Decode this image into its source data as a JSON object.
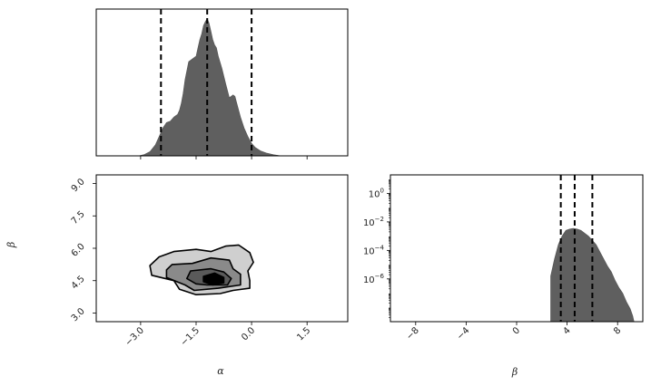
{
  "chart_data": {
    "type": "corner-plot",
    "parameters": [
      "α",
      "β"
    ],
    "colors": {
      "fill": "#5f5f5f",
      "edge": "#555555",
      "quantile_line": "#000000",
      "axes": "#000000",
      "contour_levels": [
        "#cfcfcf",
        "#8a8a8a",
        "#5a5a5a",
        "#000000"
      ]
    },
    "panels": [
      {
        "id": "hist-alpha",
        "type": "histogram",
        "xlim": [
          -4.2,
          2.6
        ],
        "ylim": [
          0,
          1.06
        ],
        "x_ticks": [
          -3.0,
          -1.5,
          0.0,
          1.5
        ],
        "x_tick_labels_shown": false,
        "y_tick_labels_shown": false,
        "quantile_lines": [
          -2.45,
          -1.2,
          0.0
        ],
        "density": [
          [
            -3.05,
            0
          ],
          [
            -2.9,
            0.01
          ],
          [
            -2.75,
            0.03
          ],
          [
            -2.6,
            0.08
          ],
          [
            -2.5,
            0.14
          ],
          [
            -2.4,
            0.2
          ],
          [
            -2.3,
            0.24
          ],
          [
            -2.2,
            0.25
          ],
          [
            -2.1,
            0.28
          ],
          [
            -2.0,
            0.3
          ],
          [
            -1.95,
            0.33
          ],
          [
            -1.9,
            0.38
          ],
          [
            -1.85,
            0.45
          ],
          [
            -1.8,
            0.55
          ],
          [
            -1.7,
            0.68
          ],
          [
            -1.6,
            0.7
          ],
          [
            -1.5,
            0.72
          ],
          [
            -1.45,
            0.78
          ],
          [
            -1.4,
            0.84
          ],
          [
            -1.35,
            0.88
          ],
          [
            -1.3,
            0.94
          ],
          [
            -1.25,
            0.97
          ],
          [
            -1.2,
            0.99
          ],
          [
            -1.15,
            0.96
          ],
          [
            -1.1,
            0.9
          ],
          [
            -1.05,
            0.84
          ],
          [
            -1.0,
            0.8
          ],
          [
            -0.95,
            0.78
          ],
          [
            -0.9,
            0.72
          ],
          [
            -0.8,
            0.63
          ],
          [
            -0.7,
            0.52
          ],
          [
            -0.6,
            0.42
          ],
          [
            -0.5,
            0.44
          ],
          [
            -0.45,
            0.43
          ],
          [
            -0.4,
            0.38
          ],
          [
            -0.3,
            0.28
          ],
          [
            -0.2,
            0.2
          ],
          [
            -0.1,
            0.14
          ],
          [
            0.0,
            0.09
          ],
          [
            0.1,
            0.06
          ],
          [
            0.25,
            0.035
          ],
          [
            0.4,
            0.02
          ],
          [
            0.6,
            0.008
          ],
          [
            0.8,
            0
          ]
        ]
      },
      {
        "id": "joint-alpha-beta",
        "type": "contour",
        "xlim": [
          -4.2,
          2.6
        ],
        "ylim": [
          2.6,
          9.4
        ],
        "x_ticks": [
          -3.0,
          -1.5,
          0.0,
          1.5
        ],
        "x_tick_labels": [
          "−3.0",
          "−1.5",
          "0.0",
          "1.5"
        ],
        "y_ticks": [
          3.0,
          4.5,
          6.0,
          7.5,
          9.0
        ],
        "y_tick_labels": [
          "3.0",
          "4.5",
          "6.0",
          "7.5",
          "9.0"
        ],
        "xlabel": "α",
        "ylabel": "β",
        "contours": [
          {
            "level": 1,
            "points": [
              [
                -2.5,
                5.6
              ],
              [
                -2.1,
                5.85
              ],
              [
                -1.5,
                5.95
              ],
              [
                -1.1,
                5.85
              ],
              [
                -0.7,
                6.1
              ],
              [
                -0.35,
                6.15
              ],
              [
                -0.05,
                5.8
              ],
              [
                0.05,
                5.35
              ],
              [
                -0.1,
                4.95
              ],
              [
                -0.05,
                4.5
              ],
              [
                -0.05,
                4.15
              ],
              [
                -0.5,
                4.05
              ],
              [
                -0.85,
                3.9
              ],
              [
                -1.5,
                3.85
              ],
              [
                -1.95,
                4.1
              ],
              [
                -2.1,
                4.5
              ],
              [
                -2.7,
                4.75
              ],
              [
                -2.75,
                5.2
              ]
            ]
          },
          {
            "level": 2,
            "points": [
              [
                -2.15,
                5.25
              ],
              [
                -1.6,
                5.3
              ],
              [
                -1.1,
                5.55
              ],
              [
                -0.6,
                5.45
              ],
              [
                -0.5,
                5.05
              ],
              [
                -0.3,
                4.8
              ],
              [
                -0.3,
                4.3
              ],
              [
                -0.9,
                4.15
              ],
              [
                -1.55,
                4.05
              ],
              [
                -1.8,
                4.3
              ],
              [
                -2.3,
                4.65
              ],
              [
                -2.3,
                5.0
              ]
            ]
          },
          {
            "level": 3,
            "points": [
              [
                -1.65,
                4.95
              ],
              [
                -1.1,
                5.05
              ],
              [
                -0.75,
                4.9
              ],
              [
                -0.55,
                4.6
              ],
              [
                -0.65,
                4.3
              ],
              [
                -1.2,
                4.3
              ],
              [
                -1.5,
                4.35
              ],
              [
                -1.75,
                4.6
              ]
            ]
          },
          {
            "level": 4,
            "points": [
              [
                -1.3,
                4.7
              ],
              [
                -1.0,
                4.85
              ],
              [
                -0.75,
                4.65
              ],
              [
                -0.75,
                4.4
              ],
              [
                -1.05,
                4.3
              ],
              [
                -1.3,
                4.45
              ]
            ]
          }
        ]
      },
      {
        "id": "hist-beta",
        "type": "histogram",
        "yscale": "log",
        "xlim": [
          -10,
          10
        ],
        "ylim_log10": [
          -9,
          1.3
        ],
        "x_ticks": [
          -8,
          -4,
          0,
          4,
          8
        ],
        "x_tick_labels": [
          "−8",
          "−4",
          "0",
          "4",
          "8"
        ],
        "y_ticks": [
          -6,
          -4,
          -2,
          0
        ],
        "y_tick_labels": [
          {
            "base": "10",
            "exp": "−6"
          },
          {
            "base": "10",
            "exp": "−4"
          },
          {
            "base": "10",
            "exp": "−2"
          },
          {
            "base": "10",
            "exp": "0"
          }
        ],
        "xlabel": "β",
        "quantile_lines": [
          3.5,
          4.6,
          6.0
        ],
        "log_density": [
          [
            2.7,
            -5.8
          ],
          [
            3.0,
            -4.6
          ],
          [
            3.3,
            -3.6
          ],
          [
            3.6,
            -3.0
          ],
          [
            3.9,
            -2.6
          ],
          [
            4.2,
            -2.5
          ],
          [
            4.5,
            -2.45
          ],
          [
            4.8,
            -2.5
          ],
          [
            5.1,
            -2.6
          ],
          [
            5.4,
            -2.8
          ],
          [
            5.7,
            -3.0
          ],
          [
            6.0,
            -3.3
          ],
          [
            6.3,
            -3.6
          ],
          [
            6.6,
            -4.1
          ],
          [
            6.9,
            -4.6
          ],
          [
            7.2,
            -5.1
          ],
          [
            7.5,
            -5.5
          ],
          [
            7.8,
            -6.1
          ],
          [
            8.1,
            -6.6
          ],
          [
            8.4,
            -7.0
          ],
          [
            8.7,
            -7.6
          ],
          [
            9.0,
            -8.1
          ],
          [
            9.2,
            -8.6
          ],
          [
            9.3,
            -9
          ]
        ]
      }
    ]
  }
}
